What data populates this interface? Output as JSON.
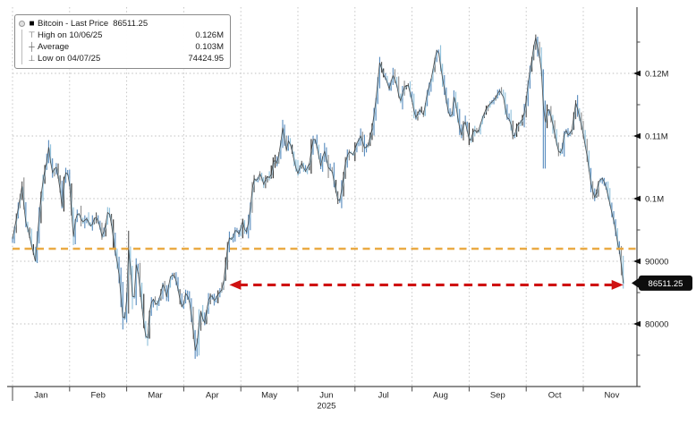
{
  "legend": {
    "items": [
      {
        "glyph": "■",
        "icon": "series-square-icon",
        "label": "Bitcoin - Last Price",
        "value": "86511.25"
      },
      {
        "glyph": "⊤",
        "icon": "high-marker-icon",
        "label": "High on 10/06/25",
        "value": "0.126M"
      },
      {
        "glyph": "┼",
        "icon": "average-marker-icon",
        "label": "Average",
        "value": "0.103M"
      },
      {
        "glyph": "⊥",
        "icon": "low-marker-icon",
        "label": "Low on 04/07/25",
        "value": "74424.95"
      }
    ]
  },
  "axes": {
    "y_ticks": [
      {
        "value": 120000,
        "text": "0.12M"
      },
      {
        "value": 110000,
        "text": "0.11M"
      },
      {
        "value": 100000,
        "text": "0.1M"
      },
      {
        "value": 90000,
        "text": "90000"
      },
      {
        "value": 80000,
        "text": "80000"
      }
    ],
    "x_months": [
      "Jan",
      "Feb",
      "Mar",
      "Apr",
      "May",
      "Jun",
      "Jul",
      "Aug",
      "Sep",
      "Oct",
      "Nov"
    ],
    "year": "2025",
    "year_under_month_index": 5
  },
  "annotations": {
    "support_line": {
      "value": 92000,
      "color": "#e9a63b",
      "style": "dashed"
    },
    "drop_arrow": {
      "value": 86511.25,
      "from_month": 3.8,
      "to_month": 10.7,
      "color": "#cf1212",
      "style": "dashed-double-arrow"
    },
    "last_price_badge": {
      "text": "86511.25",
      "bg": "#0d0d0d",
      "fg": "#ffffff"
    }
  },
  "colors": {
    "bar_dark": "#2f2f2f",
    "bar_mid": "#5a5a5a",
    "bar_blue": "#5d8fc0",
    "bar_light_blue": "#92c2dc",
    "bar_gray": "#909090",
    "grid": "#bfbfbf",
    "axis": "#4a4a4a",
    "text": "#222222",
    "background": "#ffffff"
  },
  "chart_data": {
    "type": "candlestick",
    "title": "Bitcoin - Last Price",
    "series_name": "Bitcoin",
    "x_unit": "months since 2025-01-01 (0 = Jan, 10.7 ≈ Nov 21)",
    "y_unit": "USD",
    "xlim": [
      0,
      10.95
    ],
    "ylim": [
      70000,
      130500
    ],
    "grid": true,
    "legend_position": "top-left",
    "last_price": 86511.25,
    "high": {
      "date": "10/06/25",
      "value": 126000,
      "label": "0.126M"
    },
    "average": {
      "value": 103000,
      "label": "0.103M"
    },
    "low": {
      "date": "04/07/25",
      "value": 74424.95
    },
    "points": [
      [
        0.0,
        93600
      ],
      [
        0.05,
        96000
      ],
      [
        0.1,
        98500
      ],
      [
        0.17,
        102200
      ],
      [
        0.22,
        96500
      ],
      [
        0.28,
        94800
      ],
      [
        0.33,
        92600
      ],
      [
        0.4,
        90000
      ],
      [
        0.45,
        95500
      ],
      [
        0.5,
        100500
      ],
      [
        0.56,
        104500
      ],
      [
        0.61,
        106200
      ],
      [
        0.645,
        109200
      ],
      [
        0.68,
        103800
      ],
      [
        0.72,
        104500
      ],
      [
        0.76,
        105300
      ],
      [
        0.82,
        102500
      ],
      [
        0.865,
        98500
      ],
      [
        0.9,
        102800
      ],
      [
        0.95,
        104800
      ],
      [
        1.0,
        102200
      ],
      [
        1.065,
        93800
      ],
      [
        1.1,
        96500
      ],
      [
        1.15,
        98000
      ],
      [
        1.22,
        96200
      ],
      [
        1.3,
        96800
      ],
      [
        1.38,
        95400
      ],
      [
        1.45,
        97300
      ],
      [
        1.52,
        96000
      ],
      [
        1.57,
        93800
      ],
      [
        1.63,
        95800
      ],
      [
        1.68,
        98500
      ],
      [
        1.73,
        96000
      ],
      [
        1.8,
        91500
      ],
      [
        1.86,
        88500
      ],
      [
        1.9,
        84200
      ],
      [
        1.95,
        79500
      ],
      [
        2.0,
        84000
      ],
      [
        2.04,
        93500
      ],
      [
        2.08,
        86500
      ],
      [
        2.12,
        82300
      ],
      [
        2.17,
        90000
      ],
      [
        2.22,
        86800
      ],
      [
        2.27,
        82500
      ],
      [
        2.32,
        78500
      ],
      [
        2.36,
        77000
      ],
      [
        2.41,
        83000
      ],
      [
        2.47,
        84000
      ],
      [
        2.52,
        82800
      ],
      [
        2.58,
        84200
      ],
      [
        2.64,
        86600
      ],
      [
        2.7,
        84300
      ],
      [
        2.76,
        87400
      ],
      [
        2.82,
        88000
      ],
      [
        2.88,
        86500
      ],
      [
        2.93,
        84000
      ],
      [
        2.98,
        82300
      ],
      [
        3.04,
        85200
      ],
      [
        3.1,
        83500
      ],
      [
        3.16,
        79500
      ],
      [
        3.21,
        74800
      ],
      [
        3.26,
        79500
      ],
      [
        3.3,
        82000
      ],
      [
        3.36,
        79800
      ],
      [
        3.42,
        83300
      ],
      [
        3.48,
        84800
      ],
      [
        3.54,
        83600
      ],
      [
        3.6,
        84800
      ],
      [
        3.66,
        85200
      ],
      [
        3.71,
        87300
      ],
      [
        3.75,
        91000
      ],
      [
        3.79,
        93800
      ],
      [
        3.85,
        93400
      ],
      [
        3.91,
        95200
      ],
      [
        3.97,
        94300
      ],
      [
        4.03,
        96500
      ],
      [
        4.09,
        94200
      ],
      [
        4.15,
        97000
      ],
      [
        4.22,
        103300
      ],
      [
        4.28,
        102800
      ],
      [
        4.34,
        104100
      ],
      [
        4.4,
        102300
      ],
      [
        4.46,
        103600
      ],
      [
        4.52,
        103200
      ],
      [
        4.58,
        106500
      ],
      [
        4.64,
        105500
      ],
      [
        4.7,
        109000
      ],
      [
        4.74,
        111800
      ],
      [
        4.79,
        107300
      ],
      [
        4.84,
        109500
      ],
      [
        4.9,
        107500
      ],
      [
        4.96,
        105000
      ],
      [
        5.0,
        104000
      ],
      [
        5.06,
        105800
      ],
      [
        5.13,
        104300
      ],
      [
        5.2,
        105600
      ],
      [
        5.28,
        110200
      ],
      [
        5.34,
        108000
      ],
      [
        5.4,
        105200
      ],
      [
        5.46,
        107800
      ],
      [
        5.53,
        105000
      ],
      [
        5.6,
        104300
      ],
      [
        5.67,
        101000
      ],
      [
        5.72,
        99000
      ],
      [
        5.78,
        102200
      ],
      [
        5.84,
        106300
      ],
      [
        5.9,
        107500
      ],
      [
        5.97,
        107000
      ],
      [
        6.03,
        108800
      ],
      [
        6.1,
        110000
      ],
      [
        6.17,
        108000
      ],
      [
        6.23,
        108500
      ],
      [
        6.3,
        111200
      ],
      [
        6.37,
        116000
      ],
      [
        6.44,
        122300
      ],
      [
        6.48,
        120000
      ],
      [
        6.54,
        119200
      ],
      [
        6.6,
        117500
      ],
      [
        6.66,
        119800
      ],
      [
        6.73,
        118200
      ],
      [
        6.79,
        115300
      ],
      [
        6.86,
        117800
      ],
      [
        6.93,
        118200
      ],
      [
        7.0,
        115600
      ],
      [
        7.06,
        112800
      ],
      [
        7.13,
        114200
      ],
      [
        7.2,
        113400
      ],
      [
        7.27,
        117000
      ],
      [
        7.34,
        119300
      ],
      [
        7.41,
        122800
      ],
      [
        7.45,
        124300
      ],
      [
        7.51,
        120500
      ],
      [
        7.57,
        117300
      ],
      [
        7.63,
        114000
      ],
      [
        7.69,
        112600
      ],
      [
        7.74,
        116800
      ],
      [
        7.8,
        113000
      ],
      [
        7.86,
        109800
      ],
      [
        7.92,
        112800
      ],
      [
        7.97,
        110600
      ],
      [
        8.02,
        108800
      ],
      [
        8.08,
        111200
      ],
      [
        8.15,
        110400
      ],
      [
        8.22,
        112600
      ],
      [
        8.3,
        114400
      ],
      [
        8.38,
        115300
      ],
      [
        8.46,
        116000
      ],
      [
        8.53,
        117300
      ],
      [
        8.6,
        116200
      ],
      [
        8.66,
        113000
      ],
      [
        8.72,
        112500
      ],
      [
        8.78,
        109300
      ],
      [
        8.84,
        111800
      ],
      [
        8.92,
        112300
      ],
      [
        8.98,
        114200
      ],
      [
        9.04,
        119000
      ],
      [
        9.1,
        122300
      ],
      [
        9.16,
        126000
      ],
      [
        9.21,
        123500
      ],
      [
        9.26,
        121500
      ],
      [
        9.32,
        111500
      ],
      [
        9.38,
        114800
      ],
      [
        9.44,
        113000
      ],
      [
        9.5,
        110300
      ],
      [
        9.56,
        107600
      ],
      [
        9.62,
        107200
      ],
      [
        9.68,
        111300
      ],
      [
        9.74,
        110000
      ],
      [
        9.8,
        111000
      ],
      [
        9.87,
        115500
      ],
      [
        9.93,
        113200
      ],
      [
        10.0,
        110200
      ],
      [
        10.07,
        106600
      ],
      [
        10.14,
        102000
      ],
      [
        10.21,
        99900
      ],
      [
        10.27,
        102800
      ],
      [
        10.34,
        103300
      ],
      [
        10.41,
        101500
      ],
      [
        10.48,
        98500
      ],
      [
        10.54,
        96200
      ],
      [
        10.6,
        93000
      ],
      [
        10.65,
        90800
      ],
      [
        10.7,
        86511.25
      ]
    ]
  }
}
